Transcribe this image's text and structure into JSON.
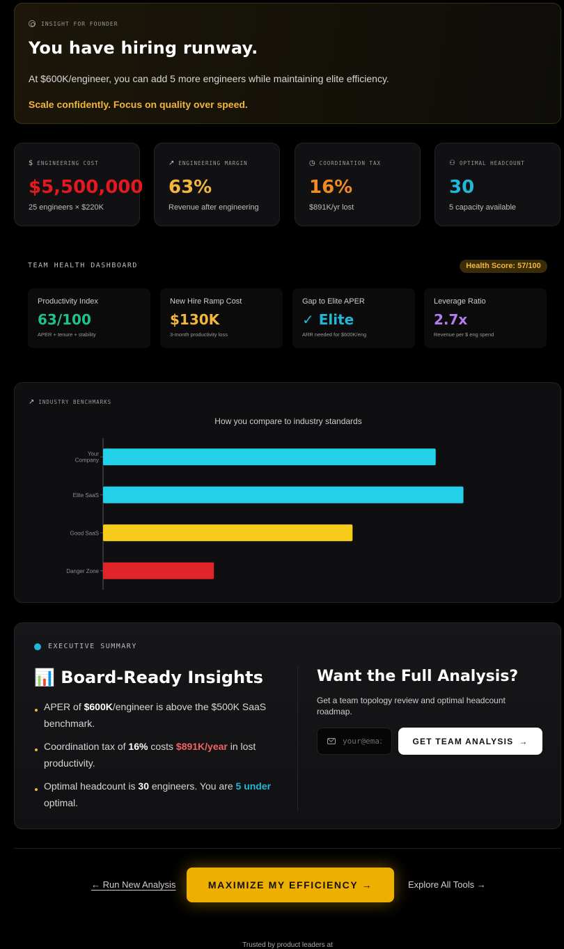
{
  "insight": {
    "kicker": "INSIGHT FOR FOUNDER",
    "title": "You have hiring runway.",
    "body": "At $600K/engineer, you can add 5 more engineers while maintaining elite efficiency.",
    "cta": "Scale confidently. Focus on quality over speed."
  },
  "stats": [
    {
      "icon": "$",
      "label": "ENGINEERING COST",
      "value": "$5,500,000",
      "sub": "25 engineers × $220K",
      "color": "#e5191d"
    },
    {
      "icon": "↗",
      "label": "ENGINEERING MARGIN",
      "value": "63%",
      "sub": "Revenue after engineering",
      "color": "#f2b63a"
    },
    {
      "icon": "◷",
      "label": "COORDINATION TAX",
      "value": "16%",
      "sub": "$891K/yr lost",
      "color": "#f08a24"
    },
    {
      "icon": "⚇",
      "label": "OPTIMAL HEADCOUNT",
      "value": "30",
      "sub": "5 capacity available",
      "color": "#22b7d6"
    }
  ],
  "team_health": {
    "title": "TEAM HEALTH DASHBOARD",
    "badge": "Health Score: 57/100",
    "cards": [
      {
        "title": "Productivity Index",
        "value": "63/100",
        "sub": "APER + tenure + stability",
        "color": "#21c28a"
      },
      {
        "title": "New Hire Ramp Cost",
        "value": "$130K",
        "sub": "3-month productivity loss",
        "color": "#f2b63a"
      },
      {
        "title": "Gap to Elite APER",
        "value": "✓ Elite",
        "sub": "ARR needed for $600K/eng",
        "color": "#22b7d6"
      },
      {
        "title": "Leverage Ratio",
        "value": "2.7x",
        "sub": "Revenue per $ eng spend",
        "color": "#b57cf0"
      }
    ]
  },
  "benchmarks": {
    "kicker": "INDUSTRY BENCHMARKS",
    "kicker_icon": "↗"
  },
  "chart_data": {
    "type": "bar",
    "orientation": "horizontal",
    "title": "How you compare to industry standards",
    "categories": [
      "Your Company",
      "Elite SaaS",
      "Good SaaS",
      "Danger Zone"
    ],
    "category_label_lines": [
      [
        "Your",
        "Company"
      ],
      [
        "Elite SaaS"
      ],
      [
        "Good SaaS"
      ],
      [
        "Danger Zone"
      ]
    ],
    "values": [
      600,
      650,
      450,
      200
    ],
    "colors": [
      "#22d0e8",
      "#22d0e8",
      "#f8cc1b",
      "#e0242a"
    ],
    "xlim": [
      0,
      800
    ],
    "xlabel": "",
    "ylabel": "",
    "grid": false
  },
  "summary": {
    "kicker": "EXECUTIVE SUMMARY",
    "title_icon": "📊",
    "title": "Board-Ready Insights",
    "b1_pre": "APER of ",
    "b1_strong": "$600K",
    "b1_post": "/engineer is above the $500K SaaS benchmark.",
    "b2_pre": "Coordination tax of ",
    "b2_strong": "16%",
    "b2_mid": " costs ",
    "b2_red": "$891K/year",
    "b2_post": " in lost productivity.",
    "b3_pre": "Optimal headcount is ",
    "b3_strong": "30",
    "b3_mid": " engineers. You are ",
    "b3_cyan": "5 under",
    "b3_post": " optimal.",
    "cta_title": "Want the Full Analysis?",
    "cta_desc": "Get a team topology review and optimal headcount roadmap.",
    "email_placeholder": "your@email.com",
    "button": "GET TEAM ANALYSIS",
    "button_arrow": "→"
  },
  "footer": {
    "left_link": "← Run New Analysis",
    "primary": "MAXIMIZE MY EFFICIENCY →",
    "right_link": "Explore All Tools →",
    "trusted": "Trusted by product leaders at"
  }
}
